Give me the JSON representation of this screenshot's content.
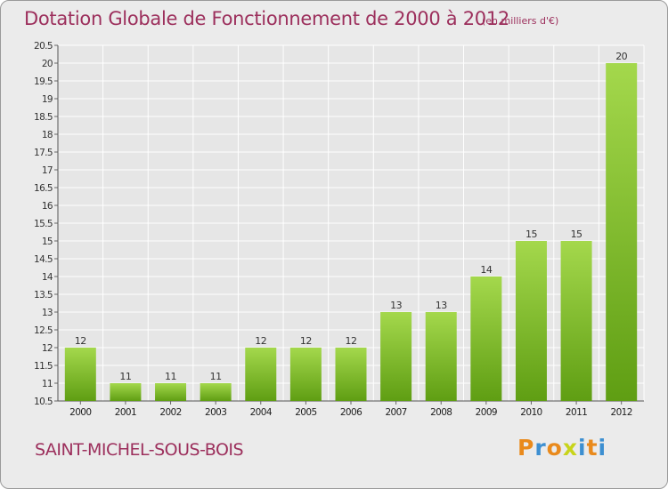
{
  "chart_data": {
    "type": "bar",
    "title": "Dotation Globale de Fonctionnement de 2000 à 2012",
    "unit_note": "(en milliers d'€)",
    "categories": [
      "2000",
      "2001",
      "2002",
      "2003",
      "2004",
      "2005",
      "2006",
      "2007",
      "2008",
      "2009",
      "2010",
      "2011",
      "2012"
    ],
    "values": [
      12,
      11,
      11,
      11,
      12,
      12,
      12,
      13,
      13,
      14,
      15,
      15,
      20
    ],
    "data_labels": [
      "12",
      "11",
      "11",
      "11",
      "12",
      "12",
      "12",
      "13",
      "13",
      "14",
      "15",
      "15",
      "20"
    ],
    "ylim": [
      10.5,
      20.5
    ],
    "yticks": [
      "10.5",
      "11",
      "11.5",
      "12",
      "12.5",
      "13",
      "13.5",
      "14",
      "14.5",
      "15",
      "15.5",
      "16",
      "16.5",
      "17",
      "17.5",
      "18",
      "18.5",
      "19",
      "19.5",
      "20",
      "20.5"
    ],
    "xlabel": "",
    "ylabel": "",
    "grid": true,
    "colors": {
      "bar_light": "#a4d84c",
      "bar_dark": "#5f9e13",
      "grid": "#ffffff",
      "title": "#9c2f5c"
    }
  },
  "commune": "SAINT-MICHEL-SOUS-BOIS",
  "logo": {
    "letters": [
      "P",
      "r",
      "o",
      "x",
      "i",
      "t",
      "i"
    ],
    "colors": [
      "#e98a1c",
      "#3d8fd1",
      "#e98a1c",
      "#c8d41a",
      "#3d8fd1",
      "#e98a1c",
      "#3d8fd1"
    ]
  }
}
